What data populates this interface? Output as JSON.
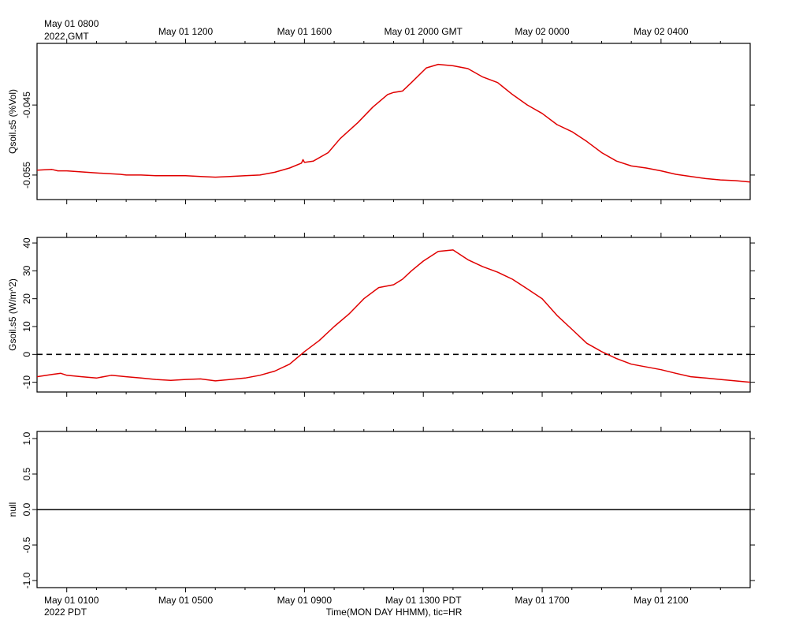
{
  "top_axis": {
    "first_label": "May 01 0800",
    "first_label_line2": "2022 GMT",
    "labels": [
      "May 01 1200",
      "May 01 1600",
      "May 01 2000 GMT",
      "May 02 0000",
      "May 02 0400"
    ]
  },
  "bottom_axis": {
    "first_label": "May 01 0100",
    "first_label_line2": "2022 PDT",
    "labels": [
      "May 01 0500",
      "May 01 0900",
      "May 01 1300 PDT",
      "May 01 1700",
      "May 01 2100"
    ],
    "title": "Time(MON DAY HHMM), tic=HR"
  },
  "colors": {
    "series": "#e00000",
    "axis": "#000000",
    "zero_line": "#000000"
  },
  "chart_data": [
    {
      "type": "line",
      "ylabel": "Qsoil.s5 (%Vol)",
      "x_unit": "hours since May 01 0000 PDT",
      "xlim": [
        0,
        24
      ],
      "ylim": [
        -0.0585,
        -0.0362
      ],
      "yticks": [
        -0.055,
        -0.045
      ],
      "ytick_labels": [
        "-0.055",
        "-0.045"
      ],
      "zero_line": false,
      "series": [
        {
          "x": [
            0,
            0.5,
            0.7,
            1,
            2,
            2.8,
            3,
            3.5,
            4,
            5,
            5.5,
            6,
            6.5,
            7,
            7.5,
            8,
            8.5,
            8.9,
            8.95,
            9.0,
            9.3,
            9.8,
            10.2,
            10.8,
            11.3,
            11.8,
            12.0,
            12.3,
            12.6,
            13.1,
            13.5,
            14.0,
            14.5,
            15.0,
            15.5,
            16.0,
            16.5,
            17.0,
            17.5,
            18.0,
            18.5,
            19.0,
            19.5,
            20.0,
            20.5,
            21.0,
            21.5,
            22.0,
            22.5,
            23.0,
            23.5,
            24.0
          ],
          "y": [
            -0.0543,
            -0.0542,
            -0.0544,
            -0.0544,
            -0.0547,
            -0.0549,
            -0.055,
            -0.055,
            -0.0551,
            -0.0551,
            -0.0552,
            -0.0553,
            -0.0552,
            -0.0551,
            -0.055,
            -0.0546,
            -0.054,
            -0.0533,
            -0.0528,
            -0.0532,
            -0.053,
            -0.0518,
            -0.0498,
            -0.0475,
            -0.0453,
            -0.0435,
            -0.0432,
            -0.043,
            -0.0418,
            -0.0397,
            -0.0392,
            -0.0394,
            -0.0398,
            -0.041,
            -0.0418,
            -0.0435,
            -0.045,
            -0.0462,
            -0.0478,
            -0.0488,
            -0.0502,
            -0.0518,
            -0.053,
            -0.0537,
            -0.054,
            -0.0544,
            -0.0549,
            -0.0552,
            -0.0555,
            -0.0557,
            -0.0558,
            -0.056
          ]
        }
      ]
    },
    {
      "type": "line",
      "ylabel": "Gsoil.s5 (W/m^2)",
      "x_unit": "hours since May 01 0000 PDT",
      "xlim": [
        0,
        24
      ],
      "ylim": [
        -13.5,
        42
      ],
      "yticks": [
        -10,
        0,
        10,
        20,
        30,
        40
      ],
      "ytick_labels": [
        "-10",
        "0",
        "10",
        "20",
        "30",
        "40"
      ],
      "zero_line": true,
      "series": [
        {
          "x": [
            0,
            0.5,
            0.8,
            1,
            1.5,
            2,
            2.5,
            3,
            3.5,
            4,
            4.5,
            5,
            5.5,
            6,
            6.5,
            7,
            7.5,
            8,
            8.5,
            9.0,
            9.5,
            10.0,
            10.5,
            11.0,
            11.5,
            12.0,
            12.3,
            12.6,
            13.0,
            13.5,
            14.0,
            14.5,
            15.0,
            15.5,
            16.0,
            16.5,
            17.0,
            17.5,
            18.0,
            18.5,
            19.0,
            19.5,
            20.0,
            20.5,
            21.0,
            21.5,
            22.0,
            22.5,
            23.0,
            23.5,
            24.0
          ],
          "y": [
            -8.0,
            -7.2,
            -6.8,
            -7.5,
            -8.0,
            -8.5,
            -7.5,
            -8.0,
            -8.5,
            -9.0,
            -9.3,
            -9.0,
            -8.8,
            -9.5,
            -9.0,
            -8.5,
            -7.5,
            -6.0,
            -3.5,
            1.0,
            5.0,
            10.0,
            14.5,
            20.0,
            24.0,
            25.0,
            27.0,
            30.0,
            33.5,
            37.0,
            37.5,
            34.0,
            31.5,
            29.5,
            27.0,
            23.5,
            20.0,
            14.0,
            9.0,
            4.0,
            1.0,
            -1.5,
            -3.5,
            -4.5,
            -5.5,
            -6.8,
            -8.0,
            -8.5,
            -9.0,
            -9.5,
            -10.0
          ]
        }
      ]
    },
    {
      "type": "line",
      "ylabel": "null",
      "x_unit": "hours since May 01 0000 PDT",
      "xlim": [
        0,
        24
      ],
      "ylim": [
        -1.1,
        1.1
      ],
      "yticks": [
        -1.0,
        -0.5,
        0.0,
        0.5,
        1.0
      ],
      "ytick_labels": [
        "-1.0",
        "-0.5",
        "0.0",
        "0.5",
        "1.0"
      ],
      "zero_line": false,
      "flat_line_y": 0.0,
      "series": []
    }
  ]
}
